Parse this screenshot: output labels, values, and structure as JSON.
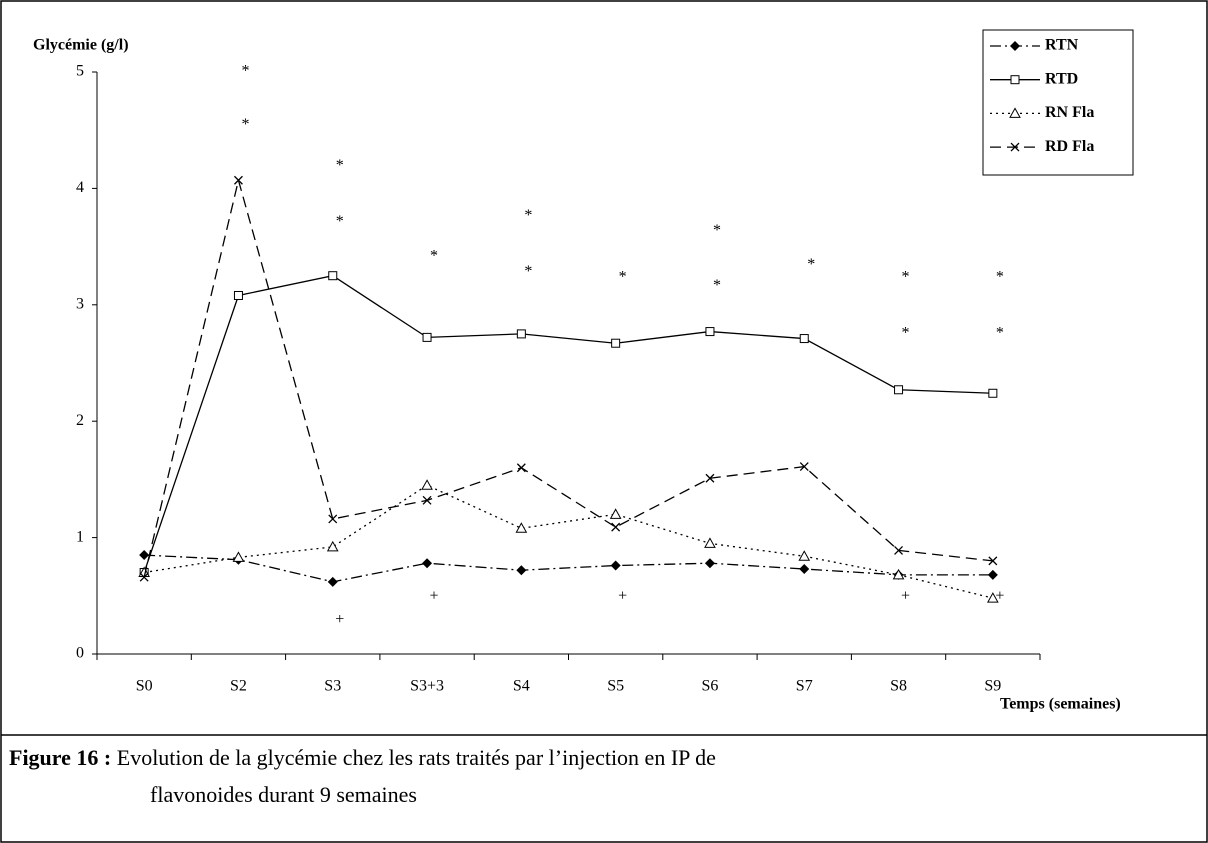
{
  "chart_data": {
    "type": "line",
    "ylabel": "Glycémie (g/l)",
    "xlabel": "Temps (semaines)",
    "categories": [
      "S0",
      "S2",
      "S3",
      "S3+3",
      "S4",
      "S5",
      "S6",
      "S7",
      "S8",
      "S9"
    ],
    "series": [
      {
        "name": "RTN",
        "color": "#000000",
        "marker": "diamond",
        "dash": "dashdot",
        "values": [
          0.85,
          0.81,
          0.62,
          0.78,
          0.72,
          0.76,
          0.78,
          0.73,
          0.68,
          0.68
        ]
      },
      {
        "name": "RTD",
        "color": "#000000",
        "marker": "square",
        "dash": "solid",
        "values": [
          0.7,
          3.08,
          3.25,
          2.72,
          2.75,
          2.67,
          2.77,
          2.71,
          2.27,
          2.24
        ]
      },
      {
        "name": "RN Fla",
        "color": "#000000",
        "marker": "triangle",
        "dash": "dotted",
        "values": [
          0.7,
          0.83,
          0.92,
          1.45,
          1.08,
          1.2,
          0.95,
          0.84,
          0.68,
          0.48
        ]
      },
      {
        "name": "RD Fla",
        "color": "#000000",
        "marker": "cross",
        "dash": "dashed",
        "values": [
          0.66,
          4.07,
          1.16,
          1.32,
          1.6,
          1.09,
          1.51,
          1.61,
          0.89,
          0.8
        ]
      }
    ],
    "ylim": [
      0,
      5
    ],
    "yticks": [
      0,
      1,
      2,
      3,
      4,
      5
    ],
    "legend": "top-right",
    "annotations": [
      {
        "text": "*",
        "x": "S2",
        "y": 5.0
      },
      {
        "text": "*",
        "x": "S2",
        "y": 4.54
      },
      {
        "text": "*",
        "x": "S3",
        "y": 4.19
      },
      {
        "text": "*",
        "x": "S3",
        "y": 3.71
      },
      {
        "text": "*",
        "x": "S3+3",
        "y": 3.41
      },
      {
        "text": "*",
        "x": "S4",
        "y": 3.76
      },
      {
        "text": "*",
        "x": "S4",
        "y": 3.28
      },
      {
        "text": "*",
        "x": "S5",
        "y": 3.23
      },
      {
        "text": "*",
        "x": "S6",
        "y": 3.63
      },
      {
        "text": "*",
        "x": "S6",
        "y": 3.16
      },
      {
        "text": "*",
        "x": "S7",
        "y": 3.34
      },
      {
        "text": "*",
        "x": "S8",
        "y": 3.23
      },
      {
        "text": "*",
        "x": "S8",
        "y": 2.75
      },
      {
        "text": "*",
        "x": "S9",
        "y": 3.23
      },
      {
        "text": "*",
        "x": "S9",
        "y": 2.75
      },
      {
        "text": "+",
        "x": "S3",
        "y": 0.29
      },
      {
        "text": "+",
        "x": "S3+3",
        "y": 0.49
      },
      {
        "text": "+",
        "x": "S5",
        "y": 0.49
      },
      {
        "text": "+",
        "x": "S8",
        "y": 0.49
      },
      {
        "text": "+",
        "x": "S9",
        "y": 0.49
      }
    ]
  },
  "caption": {
    "label": "Figure 16 :",
    "lines": [
      "Evolution de la glycémie chez les rats traités par l’injection en IP de",
      "flavonoides durant 9 semaines"
    ]
  }
}
